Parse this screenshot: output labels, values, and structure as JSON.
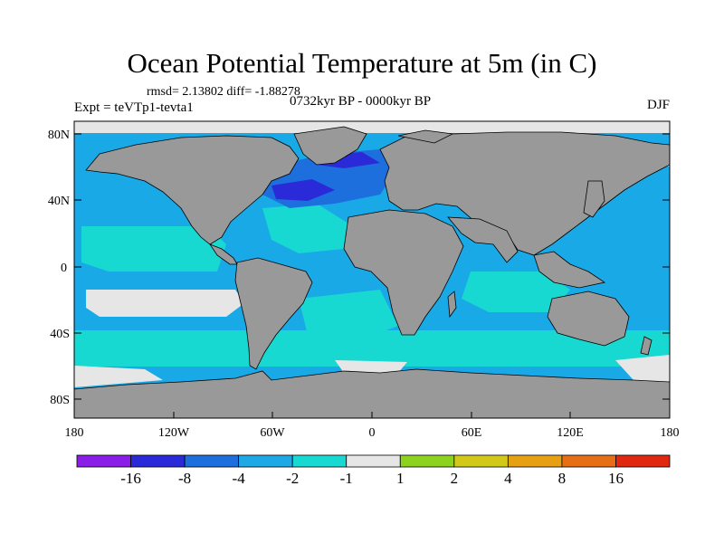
{
  "title": "Ocean Potential Temperature at 5m (in C)",
  "stats": "rmsd= 2.13802 diff= -1.88278",
  "experiment": "Expt = teVTp1-tevta1",
  "period": "0732kyr BP - 0000kyr BP",
  "season": "DJF",
  "lat_ticks": [
    "80N",
    "40N",
    "0",
    "40S",
    "80S"
  ],
  "lon_ticks": [
    "180",
    "120W",
    "60W",
    "0",
    "60E",
    "120E",
    "180"
  ],
  "colorbar": {
    "labels": [
      "-16",
      "-8",
      "-4",
      "-2",
      "-1",
      "1",
      "2",
      "4",
      "8",
      "16"
    ],
    "colors": [
      "#8a1ee6",
      "#2a2ad8",
      "#1c6fdc",
      "#1ea8e6",
      "#18d8d2",
      "#e6e6e6",
      "#8cd21e",
      "#d2c81a",
      "#e6a014",
      "#e66e14",
      "#e02810"
    ]
  },
  "colors": {
    "land": "#999999",
    "ocean_base": "#19a9e6",
    "coastline": "#000000"
  }
}
